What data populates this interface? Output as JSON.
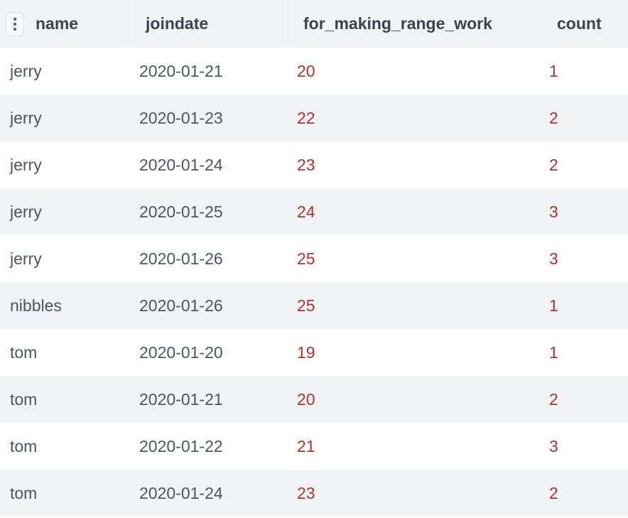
{
  "table": {
    "columns": [
      "name",
      "joindate",
      "for_making_range_work",
      "count"
    ],
    "rows": [
      {
        "name": "jerry",
        "joindate": "2020-01-21",
        "for_making_range_work": "20",
        "count": "1"
      },
      {
        "name": "jerry",
        "joindate": "2020-01-23",
        "for_making_range_work": "22",
        "count": "2"
      },
      {
        "name": "jerry",
        "joindate": "2020-01-24",
        "for_making_range_work": "23",
        "count": "2"
      },
      {
        "name": "jerry",
        "joindate": "2020-01-25",
        "for_making_range_work": "24",
        "count": "3"
      },
      {
        "name": "jerry",
        "joindate": "2020-01-26",
        "for_making_range_work": "25",
        "count": "3"
      },
      {
        "name": "nibbles",
        "joindate": "2020-01-26",
        "for_making_range_work": "25",
        "count": "1"
      },
      {
        "name": "tom",
        "joindate": "2020-01-20",
        "for_making_range_work": "19",
        "count": "1"
      },
      {
        "name": "tom",
        "joindate": "2020-01-21",
        "for_making_range_work": "20",
        "count": "2"
      },
      {
        "name": "tom",
        "joindate": "2020-01-22",
        "for_making_range_work": "21",
        "count": "3"
      },
      {
        "name": "tom",
        "joindate": "2020-01-24",
        "for_making_range_work": "23",
        "count": "2"
      }
    ]
  },
  "colors": {
    "text_gray": "#4b5563",
    "number_red": "#b0322e",
    "header_bg": "#f1f3f4",
    "row_alt_bg": "#f1f3f4"
  },
  "icons": {
    "column_menu": "vertical-dots-icon"
  }
}
